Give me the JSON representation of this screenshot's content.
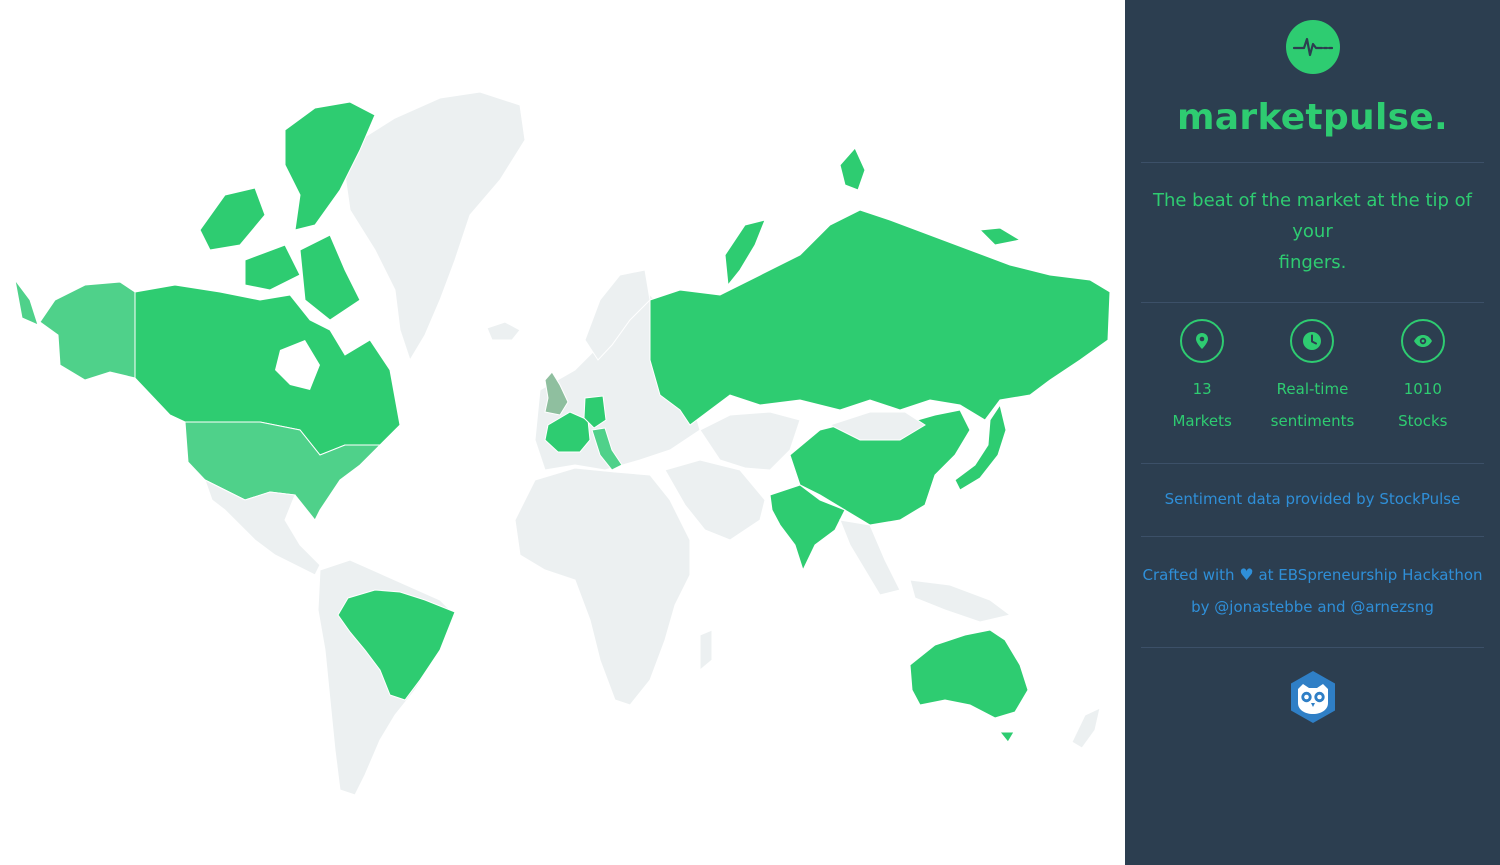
{
  "map": {
    "highlight_color": "#2ecc71",
    "base_color": "#ecf0f1",
    "highlighted_regions": [
      "Canada",
      "United States",
      "Alaska",
      "Brazil",
      "United Kingdom",
      "France",
      "Germany",
      "Switzerland",
      "Italy",
      "Russia",
      "China",
      "India",
      "Japan",
      "Australia"
    ]
  },
  "sidebar": {
    "background": "#2c3e50",
    "logo_icon": "pulse-icon",
    "brand": "marketpulse.",
    "tagline_line1": "The beat of the market at the tip of your",
    "tagline_line2": "fingers.",
    "stats": [
      {
        "icon": "map-pin-icon",
        "value": "13",
        "label": "Markets"
      },
      {
        "icon": "clock-icon",
        "value": "Real-time",
        "label": "sentiments"
      },
      {
        "icon": "eye-icon",
        "value": "1010",
        "label": "Stocks"
      }
    ],
    "provider_prefix": "Sentiment data provided by ",
    "provider_link": "StockPulse",
    "credits_prefix": "Crafted with",
    "credits_heart": "♥",
    "credits_mid": " at ",
    "credits_event": "EBSpreneurship Hackathon",
    "credits_by": "by ",
    "author1": "@jonastebbe",
    "credits_and": " and ",
    "author2": "@arnezsng",
    "footer_logo": "owl-logo-icon"
  }
}
